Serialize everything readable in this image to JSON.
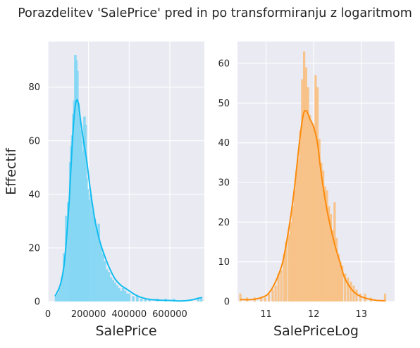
{
  "figure": {
    "title": "Porazdelitev 'SalePrice' pred in po transformiranju z logaritmom",
    "background": "#ffffff",
    "axes_facecolor": "#eaeaf2",
    "grid_color": "#ffffff"
  },
  "chart_data": [
    {
      "type": "histogram",
      "title": "",
      "xlabel": "SalePrice",
      "ylabel": "Effectif",
      "xlim": [
        0,
        770000
      ],
      "ylim": [
        0,
        97
      ],
      "xticks": [
        0,
        200000,
        400000,
        600000
      ],
      "xtick_labels": [
        "0",
        "200000",
        "400000",
        "600000"
      ],
      "yticks": [
        0,
        20,
        40,
        60,
        80
      ],
      "ytick_labels": [
        "0",
        "20",
        "40",
        "60",
        "80"
      ],
      "grid": true,
      "bar_color": "#86d7f3",
      "kde_color": "#12bdf0",
      "bins": [
        {
          "x": 40000,
          "count": 2
        },
        {
          "x": 50000,
          "count": 3
        },
        {
          "x": 60000,
          "count": 5
        },
        {
          "x": 70000,
          "count": 9
        },
        {
          "x": 80000,
          "count": 18
        },
        {
          "x": 90000,
          "count": 32
        },
        {
          "x": 100000,
          "count": 37
        },
        {
          "x": 110000,
          "count": 52
        },
        {
          "x": 115000,
          "count": 58
        },
        {
          "x": 120000,
          "count": 62
        },
        {
          "x": 125000,
          "count": 70
        },
        {
          "x": 130000,
          "count": 75
        },
        {
          "x": 135000,
          "count": 92
        },
        {
          "x": 140000,
          "count": 90
        },
        {
          "x": 145000,
          "count": 86
        },
        {
          "x": 150000,
          "count": 74
        },
        {
          "x": 155000,
          "count": 68
        },
        {
          "x": 160000,
          "count": 64
        },
        {
          "x": 165000,
          "count": 60
        },
        {
          "x": 170000,
          "count": 56
        },
        {
          "x": 175000,
          "count": 52
        },
        {
          "x": 180000,
          "count": 69
        },
        {
          "x": 185000,
          "count": 66
        },
        {
          "x": 190000,
          "count": 46
        },
        {
          "x": 195000,
          "count": 42
        },
        {
          "x": 200000,
          "count": 38
        },
        {
          "x": 210000,
          "count": 40
        },
        {
          "x": 220000,
          "count": 34
        },
        {
          "x": 230000,
          "count": 31
        },
        {
          "x": 240000,
          "count": 27
        },
        {
          "x": 250000,
          "count": 29
        },
        {
          "x": 260000,
          "count": 21
        },
        {
          "x": 270000,
          "count": 18
        },
        {
          "x": 280000,
          "count": 15
        },
        {
          "x": 290000,
          "count": 12
        },
        {
          "x": 300000,
          "count": 11
        },
        {
          "x": 310000,
          "count": 9
        },
        {
          "x": 320000,
          "count": 8
        },
        {
          "x": 330000,
          "count": 7
        },
        {
          "x": 340000,
          "count": 6
        },
        {
          "x": 350000,
          "count": 5
        },
        {
          "x": 360000,
          "count": 4
        },
        {
          "x": 370000,
          "count": 5
        },
        {
          "x": 380000,
          "count": 4
        },
        {
          "x": 390000,
          "count": 3
        },
        {
          "x": 400000,
          "count": 3
        },
        {
          "x": 420000,
          "count": 2
        },
        {
          "x": 440000,
          "count": 2
        },
        {
          "x": 460000,
          "count": 1
        },
        {
          "x": 480000,
          "count": 1
        },
        {
          "x": 500000,
          "count": 1
        },
        {
          "x": 540000,
          "count": 1
        },
        {
          "x": 580000,
          "count": 1
        },
        {
          "x": 620000,
          "count": 1
        },
        {
          "x": 740000,
          "count": 1
        },
        {
          "x": 755000,
          "count": 1
        }
      ],
      "kde": {
        "x": [
          35000,
          60000,
          80000,
          100000,
          110000,
          120000,
          130000,
          140000,
          150000,
          160000,
          175000,
          190000,
          200000,
          210000,
          230000,
          250000,
          270000,
          300000,
          330000,
          360000,
          380000,
          400000,
          430000,
          460000,
          500000,
          550000,
          600000,
          650000,
          700000,
          740000,
          760000
        ],
        "y": [
          2,
          6,
          14,
          32,
          45,
          59,
          70,
          75,
          74,
          68,
          60,
          53,
          47,
          41,
          31,
          24,
          19,
          13,
          8.5,
          6,
          5,
          4,
          2.5,
          1.5,
          0.8,
          0.5,
          0.4,
          0.2,
          0.5,
          1.2,
          1.5
        ]
      }
    },
    {
      "type": "histogram",
      "title": "",
      "xlabel": "SalePriceLog",
      "ylabel": "",
      "xlim": [
        10.4,
        13.7
      ],
      "ylim": [
        0,
        65.5
      ],
      "xticks": [
        11,
        12,
        13
      ],
      "xtick_labels": [
        "11",
        "12",
        "13"
      ],
      "yticks": [
        0,
        10,
        20,
        30,
        40,
        50,
        60
      ],
      "ytick_labels": [
        "0",
        "10",
        "20",
        "30",
        "40",
        "50",
        "60"
      ],
      "grid": true,
      "bar_color": "#f8c184",
      "kde_color": "#fb8b0d",
      "bins": [
        {
          "x": 10.46,
          "count": 2
        },
        {
          "x": 10.6,
          "count": 1
        },
        {
          "x": 10.76,
          "count": 1
        },
        {
          "x": 10.9,
          "count": 1
        },
        {
          "x": 10.98,
          "count": 1
        },
        {
          "x": 11.06,
          "count": 2
        },
        {
          "x": 11.14,
          "count": 3
        },
        {
          "x": 11.2,
          "count": 4
        },
        {
          "x": 11.26,
          "count": 7
        },
        {
          "x": 11.32,
          "count": 8
        },
        {
          "x": 11.38,
          "count": 12
        },
        {
          "x": 11.42,
          "count": 15
        },
        {
          "x": 11.48,
          "count": 17
        },
        {
          "x": 11.52,
          "count": 20
        },
        {
          "x": 11.56,
          "count": 24
        },
        {
          "x": 11.6,
          "count": 28
        },
        {
          "x": 11.64,
          "count": 33
        },
        {
          "x": 11.68,
          "count": 36
        },
        {
          "x": 11.72,
          "count": 43
        },
        {
          "x": 11.76,
          "count": 56
        },
        {
          "x": 11.8,
          "count": 63
        },
        {
          "x": 11.84,
          "count": 59
        },
        {
          "x": 11.88,
          "count": 54
        },
        {
          "x": 11.92,
          "count": 47
        },
        {
          "x": 11.96,
          "count": 45
        },
        {
          "x": 12.0,
          "count": 44
        },
        {
          "x": 12.04,
          "count": 57
        },
        {
          "x": 12.08,
          "count": 54
        },
        {
          "x": 12.12,
          "count": 41
        },
        {
          "x": 12.16,
          "count": 35
        },
        {
          "x": 12.2,
          "count": 33
        },
        {
          "x": 12.24,
          "count": 29
        },
        {
          "x": 12.28,
          "count": 28
        },
        {
          "x": 12.32,
          "count": 24
        },
        {
          "x": 12.36,
          "count": 22
        },
        {
          "x": 12.4,
          "count": 18
        },
        {
          "x": 12.44,
          "count": 25
        },
        {
          "x": 12.48,
          "count": 16
        },
        {
          "x": 12.52,
          "count": 12
        },
        {
          "x": 12.56,
          "count": 10
        },
        {
          "x": 12.6,
          "count": 9
        },
        {
          "x": 12.66,
          "count": 7
        },
        {
          "x": 12.72,
          "count": 6
        },
        {
          "x": 12.78,
          "count": 5
        },
        {
          "x": 12.84,
          "count": 4
        },
        {
          "x": 12.9,
          "count": 3
        },
        {
          "x": 12.98,
          "count": 2
        },
        {
          "x": 13.08,
          "count": 2
        },
        {
          "x": 13.2,
          "count": 1
        },
        {
          "x": 13.5,
          "count": 2
        }
      ],
      "kde": {
        "x": [
          10.46,
          10.7,
          10.9,
          11.05,
          11.2,
          11.35,
          11.5,
          11.6,
          11.7,
          11.78,
          11.85,
          11.92,
          12.0,
          12.08,
          12.15,
          12.25,
          12.35,
          12.45,
          12.55,
          12.65,
          12.8,
          12.95,
          13.1,
          13.3,
          13.5
        ],
        "y": [
          0.5,
          0.5,
          1,
          2,
          5,
          10,
          20,
          29,
          40,
          47,
          48,
          46,
          44,
          40,
          33,
          25,
          19,
          14,
          10,
          6,
          3,
          1.5,
          0.8,
          0.3,
          0.2
        ]
      }
    }
  ]
}
